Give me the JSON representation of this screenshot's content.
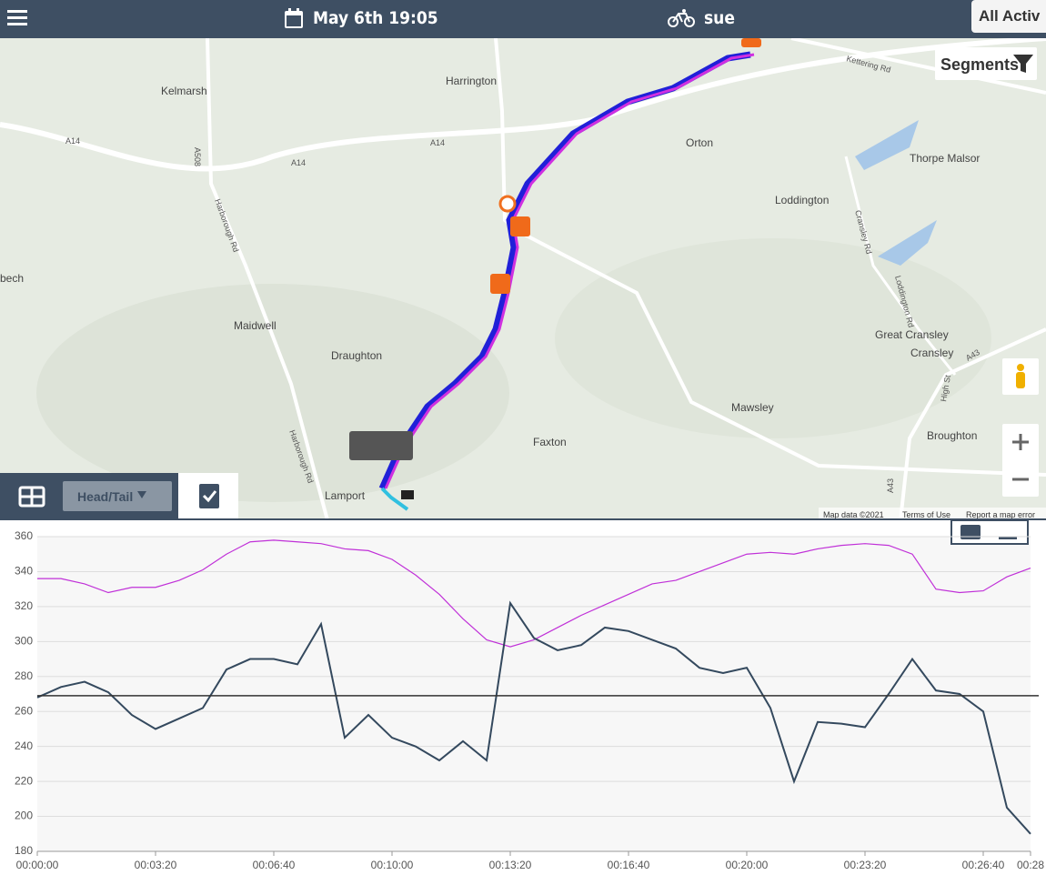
{
  "header": {
    "date": "May 6th 19:05",
    "user": "sue",
    "filter": "All Activ"
  },
  "map": {
    "segments_button": "Segments",
    "head_tail_button": "Head/Tail",
    "places": [
      "Harrington",
      "Kelmarsh",
      "Orton",
      "Thorpe Malsor",
      "Loddington",
      "Maidwell",
      "Draughton",
      "Great Cransley",
      "Cransley",
      "Mawsley",
      "Faxton",
      "Broughton",
      "Lamport",
      "bech"
    ],
    "roads": [
      "A14",
      "A14",
      "A14",
      "A508",
      "Harborough Rd",
      "Harborough Rd",
      "Kettering Rd",
      "Loddington Rd",
      "Cransley Rd",
      "A43",
      "A43",
      "High St"
    ],
    "footer": [
      "Map data ©2021",
      "Terms of Use",
      "Report a map error"
    ]
  },
  "chart_data": {
    "type": "line",
    "x": [
      0,
      40,
      80,
      120,
      160,
      200,
      240,
      280,
      320,
      360,
      400,
      440,
      480,
      520,
      560,
      600,
      640,
      680,
      720,
      760,
      800,
      840,
      880,
      920,
      960,
      1000,
      1040,
      1080,
      1120,
      1160,
      1200,
      1240,
      1280,
      1320,
      1360,
      1400,
      1440,
      1480,
      1520,
      1560,
      1600,
      1640,
      1680
    ],
    "series": [
      {
        "color": "#c030d8",
        "values": [
          336,
          336,
          333,
          328,
          331,
          331,
          335,
          341,
          350,
          357,
          358,
          357,
          356,
          353,
          352,
          347,
          338,
          327,
          313,
          301,
          297,
          301,
          308,
          315,
          321,
          327,
          333,
          335,
          340,
          345,
          350,
          351,
          350,
          353,
          355,
          356,
          355,
          350,
          330,
          328,
          329,
          337,
          342
        ]
      },
      {
        "color": "#34495e",
        "values": [
          268,
          274,
          277,
          271,
          258,
          250,
          256,
          262,
          284,
          290,
          290,
          287,
          310,
          245,
          258,
          245,
          240,
          232,
          243,
          232,
          322,
          302,
          295,
          298,
          308,
          306,
          301,
          296,
          285,
          282,
          285,
          262,
          220,
          254,
          253,
          251,
          270,
          290,
          272,
          270,
          260,
          205,
          190
        ]
      }
    ],
    "reference_line": 269,
    "xlim": [
      0,
      1680
    ],
    "ylim": [
      180,
      360
    ],
    "yticks": [
      180,
      200,
      220,
      240,
      260,
      280,
      300,
      320,
      340,
      360
    ],
    "xticks": [
      {
        "value": 0,
        "label": "00:00:00"
      },
      {
        "value": 200,
        "label": "00:03:20"
      },
      {
        "value": 400,
        "label": "00:06:40"
      },
      {
        "value": 600,
        "label": "00:10:00"
      },
      {
        "value": 800,
        "label": "00:13:20"
      },
      {
        "value": 1000,
        "label": "00:16:40"
      },
      {
        "value": 1200,
        "label": "00:20:00"
      },
      {
        "value": 1400,
        "label": "00:23:20"
      },
      {
        "value": 1600,
        "label": "00:26:40"
      },
      {
        "value": 1680,
        "label": "00:28"
      }
    ],
    "grid": true
  }
}
